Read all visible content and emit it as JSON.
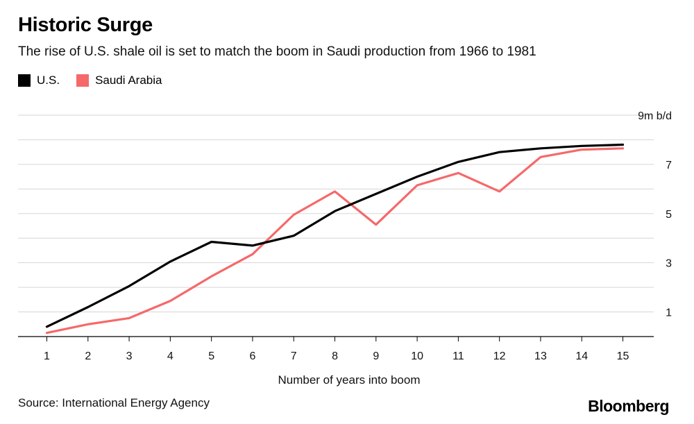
{
  "header": {
    "title": "Historic Surge",
    "subtitle": "The rise of U.S. shale oil is set to match the boom in Saudi production from 1966 to 1981"
  },
  "footer": {
    "source": "Source: International Energy Agency",
    "brand": "Bloomberg"
  },
  "chart_data": {
    "type": "line",
    "title": "Historic Surge",
    "subtitle": "The rise of U.S. shale oil is set to match the boom in Saudi production from 1966 to 1981",
    "xlabel": "Number of years into boom",
    "ylabel": "9m b/d",
    "x": [
      1,
      2,
      3,
      4,
      5,
      6,
      7,
      8,
      9,
      10,
      11,
      12,
      13,
      14,
      15
    ],
    "xlim": [
      0.3,
      15.75
    ],
    "ylim": [
      0,
      9
    ],
    "y_ticks": [
      1,
      3,
      5,
      7
    ],
    "y_top_label": "9m b/d",
    "grid": true,
    "legend_position": "top-left",
    "series": [
      {
        "name": "U.S.",
        "color": "#000000",
        "values": [
          0.4,
          1.2,
          2.05,
          3.05,
          3.85,
          3.7,
          4.1,
          5.1,
          5.8,
          6.5,
          7.1,
          7.5,
          7.65,
          7.75,
          7.8
        ]
      },
      {
        "name": "Saudi Arabia",
        "color": "#f5696a",
        "values": [
          0.15,
          0.5,
          0.75,
          1.45,
          2.45,
          3.35,
          4.95,
          5.9,
          4.55,
          6.15,
          6.65,
          5.9,
          7.3,
          7.6,
          7.65
        ]
      }
    ]
  }
}
